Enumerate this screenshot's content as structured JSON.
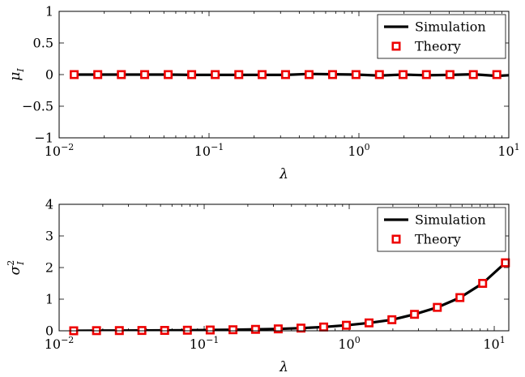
{
  "chart_data": [
    {
      "type": "line",
      "xscale": "log",
      "xlim": [
        0.01,
        10
      ],
      "ylim": [
        -1,
        1
      ],
      "xlabel": "λ",
      "ylabel": "μ_I",
      "ylabel_main": "μ",
      "ylabel_sub": "I",
      "ylabel_sup": "",
      "xtick_labels": [
        {
          "value": 0.01,
          "base": "10",
          "exp": "−2"
        },
        {
          "value": 0.1,
          "base": "10",
          "exp": "−1"
        },
        {
          "value": 1,
          "base": "10",
          "exp": "0"
        },
        {
          "value": 10,
          "base": "10",
          "exp": "1"
        }
      ],
      "ytick_labels": [
        {
          "value": -1,
          "label": "−1"
        },
        {
          "value": -0.5,
          "label": "−0.5"
        },
        {
          "value": 0,
          "label": "0"
        },
        {
          "value": 0.5,
          "label": "0.5"
        },
        {
          "value": 1,
          "label": "1"
        }
      ],
      "legend_position": "top-right",
      "series": [
        {
          "name": "Simulation",
          "style": "line",
          "color": "#000000",
          "x": [
            0.0126,
            0.0181,
            0.026,
            0.0372,
            0.0534,
            0.0766,
            0.11,
            0.158,
            0.226,
            0.324,
            0.465,
            0.667,
            0.956,
            1.37,
            1.97,
            2.82,
            4.05,
            5.8,
            8.32,
            10.0
          ],
          "y": [
            0.0,
            0.0,
            0.0,
            0.0,
            0.0,
            -0.005,
            -0.005,
            -0.005,
            -0.005,
            -0.005,
            0.01,
            0.005,
            0.0,
            -0.015,
            0.0,
            -0.01,
            -0.005,
            0.005,
            -0.02,
            -0.01
          ]
        },
        {
          "name": "Theory",
          "style": "marker",
          "color": "#ee0000",
          "x": [
            0.0126,
            0.0181,
            0.026,
            0.0372,
            0.0534,
            0.0766,
            0.11,
            0.158,
            0.226,
            0.324,
            0.465,
            0.667,
            0.956,
            1.37,
            1.97,
            2.82,
            4.05,
            5.8,
            8.32
          ],
          "y": [
            0,
            0,
            0,
            0,
            0,
            0,
            0,
            0,
            0,
            0,
            0,
            0,
            0,
            0,
            0,
            0,
            0,
            0,
            0
          ]
        }
      ]
    },
    {
      "type": "line",
      "xscale": "log",
      "xlim": [
        0.01,
        12.6
      ],
      "ylim": [
        0,
        4
      ],
      "xlabel": "λ",
      "ylabel": "σ_I^2",
      "ylabel_main": "σ",
      "ylabel_sub": "I",
      "ylabel_sup": "2",
      "xtick_labels": [
        {
          "value": 0.01,
          "base": "10",
          "exp": "−2"
        },
        {
          "value": 0.1,
          "base": "10",
          "exp": "−1"
        },
        {
          "value": 1,
          "base": "10",
          "exp": "0"
        },
        {
          "value": 10,
          "base": "10",
          "exp": "1"
        }
      ],
      "ytick_labels": [
        {
          "value": 0,
          "label": "0"
        },
        {
          "value": 1,
          "label": "1"
        },
        {
          "value": 2,
          "label": "2"
        },
        {
          "value": 3,
          "label": "3"
        },
        {
          "value": 4,
          "label": "4"
        }
      ],
      "legend_position": "top-right",
      "series": [
        {
          "name": "Simulation",
          "style": "line",
          "color": "#000000",
          "x": [
            0.0126,
            0.0181,
            0.026,
            0.0372,
            0.0534,
            0.0766,
            0.11,
            0.158,
            0.226,
            0.324,
            0.465,
            0.667,
            0.956,
            1.37,
            1.97,
            2.82,
            4.05,
            5.8,
            8.32,
            11.94
          ],
          "y": [
            0.0,
            0.005,
            0.007,
            0.01,
            0.012,
            0.018,
            0.025,
            0.033,
            0.045,
            0.06,
            0.085,
            0.12,
            0.175,
            0.25,
            0.35,
            0.52,
            0.74,
            1.05,
            1.5,
            2.15
          ]
        },
        {
          "name": "Theory",
          "style": "marker",
          "color": "#ee0000",
          "x": [
            0.0126,
            0.0181,
            0.026,
            0.0372,
            0.0534,
            0.0766,
            0.11,
            0.158,
            0.226,
            0.324,
            0.465,
            0.667,
            0.956,
            1.37,
            1.97,
            2.82,
            4.05,
            5.8,
            8.32,
            11.94
          ],
          "y": [
            0.0,
            0.005,
            0.007,
            0.01,
            0.012,
            0.018,
            0.025,
            0.033,
            0.045,
            0.06,
            0.085,
            0.12,
            0.175,
            0.25,
            0.35,
            0.52,
            0.74,
            1.05,
            1.5,
            2.15
          ]
        }
      ]
    }
  ]
}
